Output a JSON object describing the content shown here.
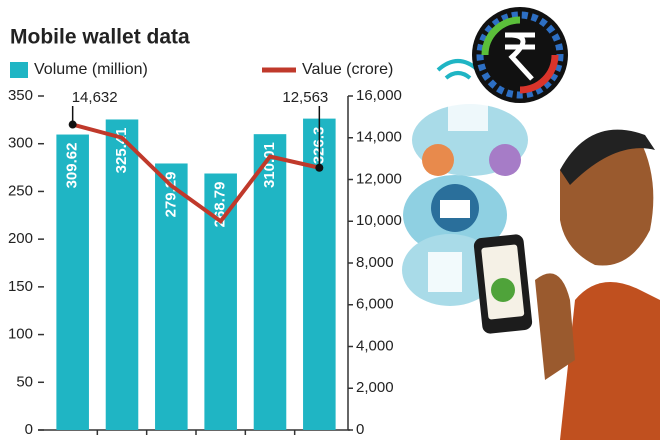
{
  "chart_data": {
    "type": "combo",
    "title": "Mobile wallet data",
    "categories": [
      null,
      null,
      null,
      null,
      null,
      null
    ],
    "series": [
      {
        "name": "Volume (million)",
        "type": "bar",
        "color": "#1fb5c4",
        "values": [
          309.62,
          325.41,
          279.29,
          268.79,
          310.01,
          326.3
        ]
      },
      {
        "name": "Value (crore)",
        "type": "line",
        "axis": "y2",
        "color": "#c0392b",
        "values": [
          14632,
          14000,
          11700,
          10000,
          13100,
          12563
        ],
        "value_labels": [
          "14,632",
          null,
          null,
          null,
          null,
          "12,563"
        ]
      }
    ],
    "ylim": [
      0,
      350
    ],
    "yticks": [
      0,
      50,
      100,
      150,
      200,
      250,
      300,
      350
    ],
    "y2lim": [
      0,
      16000
    ],
    "y2ticks": [
      0,
      {
        "value": 2000,
        "label": "2,000"
      },
      {
        "value": 4000,
        "label": "4,000"
      },
      {
        "value": 6000,
        "label": "6,000"
      },
      {
        "value": 8000,
        "label": "8,000"
      },
      {
        "value": 10000,
        "label": "10,000"
      },
      {
        "value": 12000,
        "label": "12,000"
      },
      {
        "value": 14000,
        "label": "14,000"
      },
      {
        "value": 16000,
        "label": "16,000"
      }
    ],
    "legend": "top"
  }
}
